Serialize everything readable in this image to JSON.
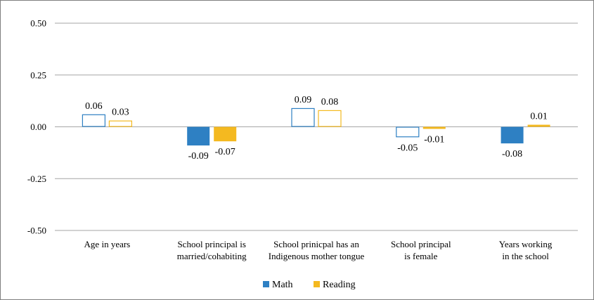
{
  "chart_data": {
    "type": "bar",
    "categories": [
      [
        "Age in years"
      ],
      [
        "School principal is",
        "married/cohabiting"
      ],
      [
        "School prinicpal has an",
        "Indigenous mother tongue"
      ],
      [
        "School principal",
        "is female"
      ],
      [
        "Years working",
        "in the school"
      ]
    ],
    "series": [
      {
        "name": "Math",
        "color": "#2e80c3",
        "values": [
          0.06,
          -0.09,
          0.09,
          -0.05,
          -0.08
        ],
        "labels": [
          "0.06",
          "-0.09",
          "0.09",
          "-0.05",
          "-0.08"
        ],
        "filled": [
          false,
          true,
          false,
          false,
          true
        ]
      },
      {
        "name": "Reading",
        "color": "#f4b920",
        "values": [
          0.03,
          -0.07,
          0.08,
          -0.01,
          0.01
        ],
        "labels": [
          "0.03",
          "-0.07",
          "0.08",
          "-0.01",
          "0.01"
        ],
        "filled": [
          false,
          true,
          false,
          true,
          true
        ]
      }
    ],
    "yticks": [
      "0.50",
      "0.25",
      "0.00",
      "-0.25",
      "-0.50"
    ],
    "ytick_values": [
      0.5,
      0.25,
      0,
      -0.25,
      -0.5
    ],
    "ylim": [
      -0.5,
      0.5
    ],
    "grid": true,
    "legend_position": "bottom"
  }
}
